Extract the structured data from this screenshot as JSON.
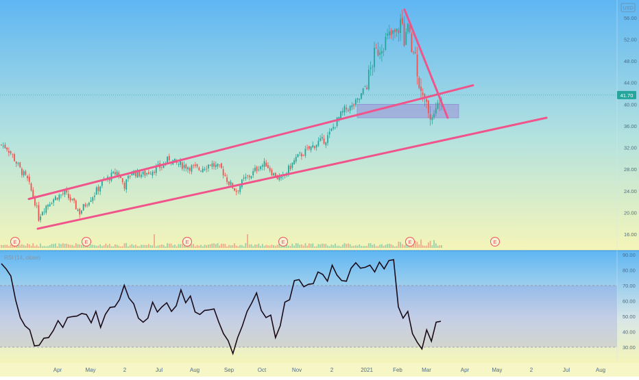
{
  "currency_badge": "USD",
  "price_panel": {
    "price_tick_labels": [
      "48.00",
      "44.00",
      "40.00",
      "36.00",
      "32.00",
      "28.00",
      "24.00",
      "20.00",
      "16.00"
    ],
    "price_ticks_top": [
      "56.00",
      "52.00"
    ],
    "last_price_label": "41.70",
    "earnings_marker_label": "E",
    "colors": {
      "up": "#26a69a",
      "down": "#ef5350",
      "trendline": "#f0548a",
      "zone": "#9c8fd6"
    }
  },
  "rsi_panel": {
    "title": "RSI (14, close)",
    "tick_labels": [
      "90.00",
      "80.00",
      "70.00",
      "60.00",
      "50.00",
      "40.00",
      "30.00"
    ],
    "upper_band": 70,
    "lower_band": 30
  },
  "time_axis": {
    "labels": [
      "Apr",
      "May",
      "2",
      "Jul",
      "Aug",
      "Sep",
      "Oct",
      "Nov",
      "2",
      "2021",
      "Feb",
      "Mar",
      "Apr",
      "May",
      "2",
      "Jul",
      "Aug"
    ]
  },
  "chart_data": [
    {
      "type": "line",
      "name": "price",
      "ylim": [
        14,
        60
      ],
      "y_ticks": [
        16,
        20,
        24,
        28,
        32,
        36,
        40,
        44,
        48,
        52,
        56
      ],
      "last_value": 41.7,
      "x_categories": [
        "Apr",
        "May",
        "2",
        "Jul",
        "Aug",
        "Sep",
        "Oct",
        "Nov",
        "2",
        "2021",
        "Feb",
        "Mar",
        "Apr",
        "May",
        "2",
        "Jul",
        "Aug"
      ],
      "price_path_approx": [
        {
          "x": "Mar start",
          "y": 32.5
        },
        {
          "x": "mid-Mar",
          "y": 28.0
        },
        {
          "x": "Mar low",
          "y": 17.5
        },
        {
          "x": "Apr",
          "y": 22.5
        },
        {
          "x": "Apr late",
          "y": 25.0
        },
        {
          "x": "May",
          "y": 21.0
        },
        {
          "x": "May late",
          "y": 23.5
        },
        {
          "x": "Jun",
          "y": 27.5
        },
        {
          "x": "Jul",
          "y": 27.0
        },
        {
          "x": "Aug",
          "y": 30.0
        },
        {
          "x": "Aug late",
          "y": 28.5
        },
        {
          "x": "Sep",
          "y": 28.5
        },
        {
          "x": "Sep late",
          "y": 24.5
        },
        {
          "x": "Oct",
          "y": 28.0
        },
        {
          "x": "Oct late",
          "y": 25.5
        },
        {
          "x": "Nov",
          "y": 30.0
        },
        {
          "x": "Dec",
          "y": 34.0
        },
        {
          "x": "Dec late",
          "y": 39.0
        },
        {
          "x": "2021",
          "y": 41.0
        },
        {
          "x": "Jan mid",
          "y": 52.0
        },
        {
          "x": "Jan late",
          "y": 56.0
        },
        {
          "x": "Feb",
          "y": 50.0
        },
        {
          "x": "Feb late",
          "y": 40.0
        },
        {
          "x": "Mar",
          "y": 41.7
        }
      ],
      "annotations": [
        "upper channel trendline rising from ~22.5 (Mar) to ~43.5",
        "lower channel trendline rising from ~17 (Mar) to ~37.5",
        "descending trendline from ~57.5 to ~37.5",
        "shaded zone 37.5 - 40.0",
        "earnings markers E"
      ]
    },
    {
      "type": "line",
      "name": "RSI (14, close)",
      "ylim": [
        25,
        90
      ],
      "y_ticks": [
        30,
        40,
        50,
        60,
        70,
        80,
        90
      ],
      "bands": [
        30,
        70
      ],
      "values_approx": [
        83,
        82,
        75,
        62,
        48,
        45,
        40,
        32,
        30,
        37,
        35,
        42,
        46,
        44,
        48,
        51,
        49,
        53,
        50,
        47,
        52,
        44,
        50,
        57,
        55,
        62,
        69,
        63,
        57,
        50,
        45,
        50,
        58,
        54,
        55,
        60,
        52,
        58,
        66,
        60,
        62,
        54,
        50,
        55,
        53,
        56,
        45,
        40,
        33,
        27,
        35,
        45,
        52,
        60,
        64,
        55,
        48,
        52,
        35,
        45,
        58,
        62,
        72,
        75,
        68,
        72,
        70,
        80,
        76,
        74,
        82,
        78,
        72,
        74,
        80,
        86,
        80,
        83,
        82,
        80,
        84,
        82,
        85,
        88,
        55,
        50,
        52,
        40,
        32,
        30,
        40,
        35,
        45,
        48
      ]
    }
  ]
}
